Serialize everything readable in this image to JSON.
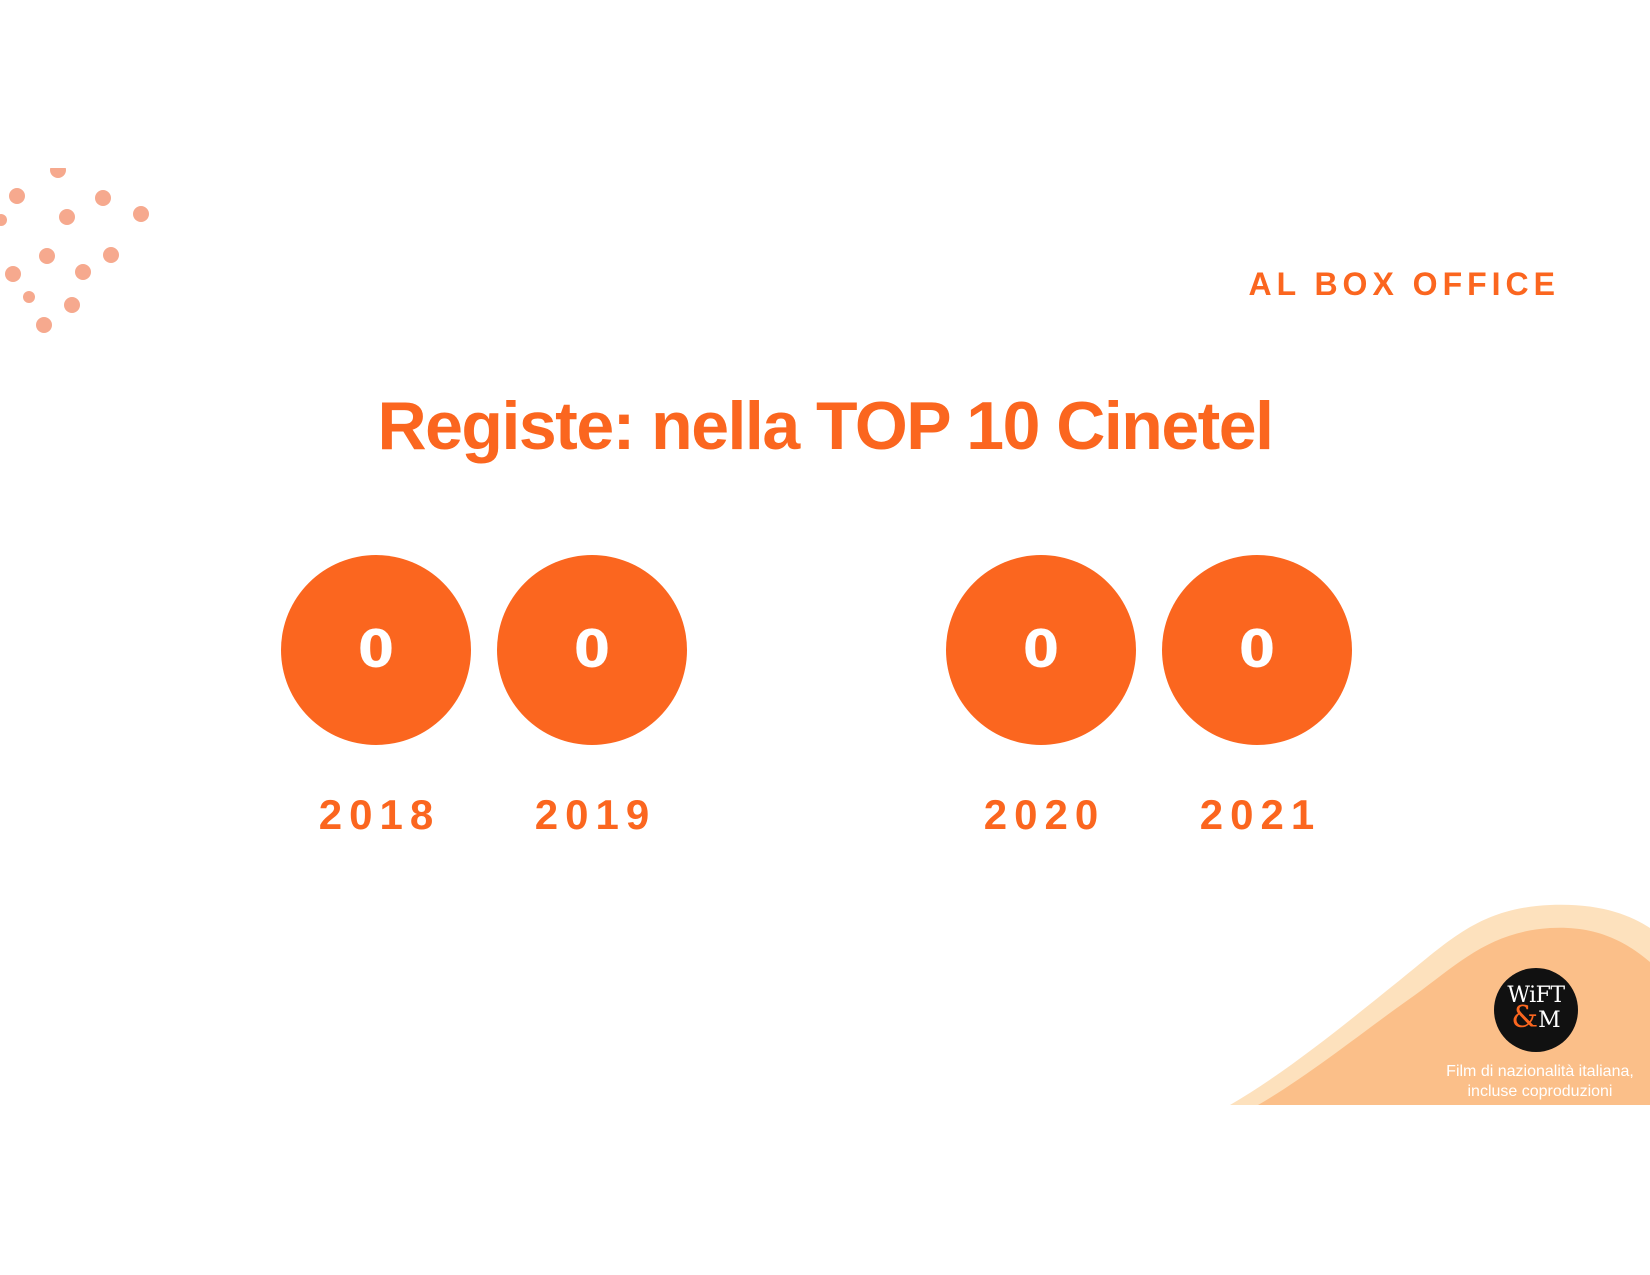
{
  "colors": {
    "accent": "#fb661f",
    "dots": "#f6a98e",
    "blob_light": "#fde1bd",
    "blob_dark": "#fbbf89",
    "logo_amp": "#fb661f"
  },
  "header": {
    "section_label": "AL BOX OFFICE",
    "title": "Registe: nella TOP 10 Cinetel"
  },
  "stats": [
    {
      "value": "0",
      "year": "2018"
    },
    {
      "value": "0",
      "year": "2019"
    },
    {
      "value": "0",
      "year": "2020"
    },
    {
      "value": "0",
      "year": "2021"
    }
  ],
  "logo": {
    "line1": "WiFT",
    "amp": "&",
    "line2": "M"
  },
  "footnote": {
    "line1": "Film di nazionalità italiana,",
    "line2": "incluse coproduzioni"
  }
}
